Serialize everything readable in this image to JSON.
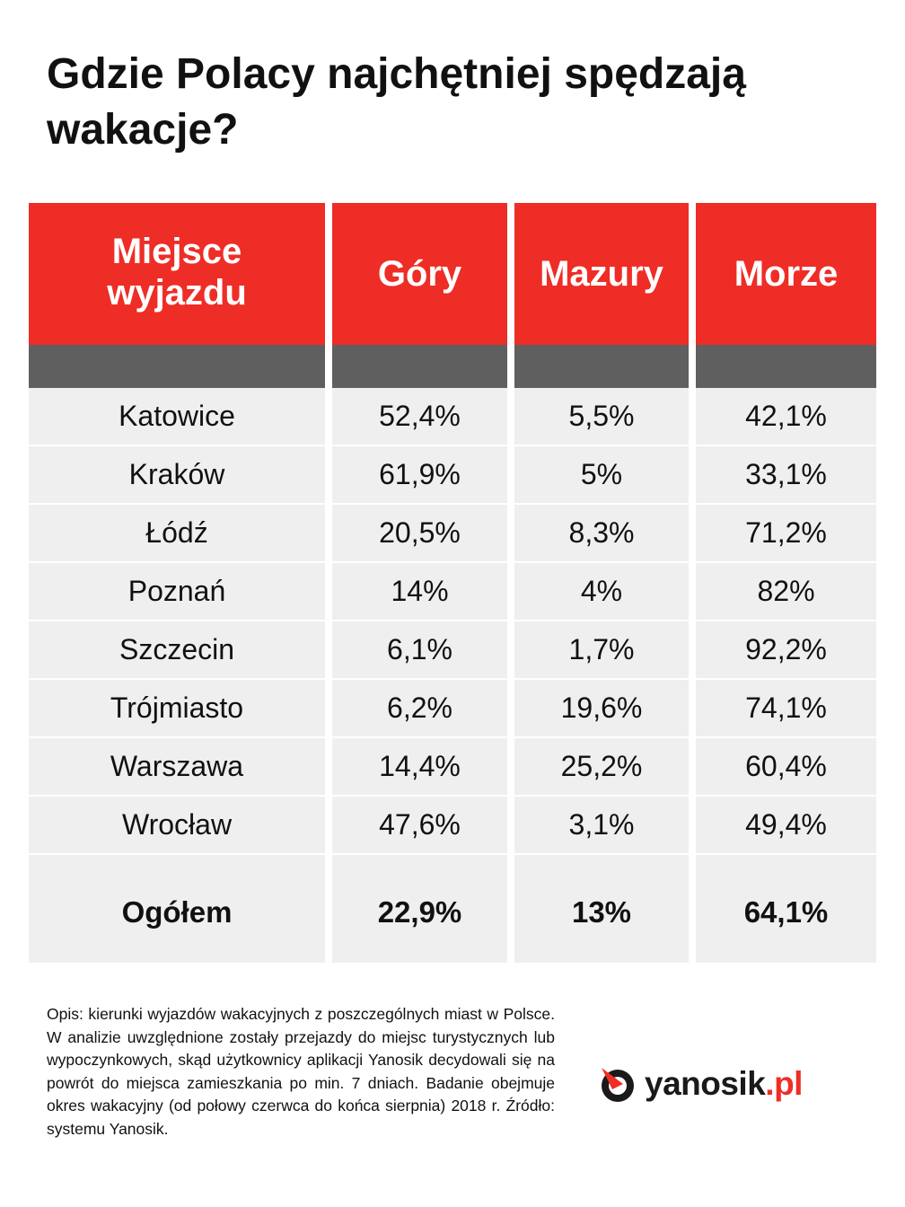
{
  "title": "Gdzie Polacy najchętniej spędzają wakacje?",
  "chart_data": {
    "type": "table",
    "title": "Gdzie Polacy najchętniej spędzają wakacje?",
    "columns": [
      "Miejsce wyjazdu",
      "Góry",
      "Mazury",
      "Morze"
    ],
    "rows": [
      {
        "city": "Katowice",
        "gory": "52,4%",
        "mazury": "5,5%",
        "morze": "42,1%"
      },
      {
        "city": "Kraków",
        "gory": "61,9%",
        "mazury": "5%",
        "morze": "33,1%"
      },
      {
        "city": "Łódź",
        "gory": "20,5%",
        "mazury": "8,3%",
        "morze": "71,2%"
      },
      {
        "city": "Poznań",
        "gory": "14%",
        "mazury": "4%",
        "morze": "82%"
      },
      {
        "city": "Szczecin",
        "gory": "6,1%",
        "mazury": "1,7%",
        "morze": "92,2%"
      },
      {
        "city": "Trójmiasto",
        "gory": "6,2%",
        "mazury": "19,6%",
        "morze": "74,1%"
      },
      {
        "city": "Warszawa",
        "gory": "14,4%",
        "mazury": "25,2%",
        "morze": "60,4%"
      },
      {
        "city": "Wrocław",
        "gory": "47,6%",
        "mazury": "3,1%",
        "morze": "49,4%"
      }
    ],
    "total": {
      "city": "Ogółem",
      "gory": "22,9%",
      "mazury": "13%",
      "morze": "64,1%"
    }
  },
  "header": {
    "col0_line1": "Miejsce",
    "col0_line2": "wyjazdu",
    "col1": "Góry",
    "col2": "Mazury",
    "col3": "Morze"
  },
  "footnote": "Opis: kierunki wyjazdów wakacyjnych z poszczególnych miast w Polsce. W analizie uwzględnione zostały przejazdy do miejsc turystycznych lub wypoczynkowych, skąd użytkownicy aplikacji Yanosik decydowali się na powrót do miejsca zamieszkania po min. 7 dniach. Badanie obejmuje okres wakacyjny (od połowy czerwca do końca sierpnia) 2018 r. Źródło: systemu Yanosik.",
  "logo": {
    "name": "yanosik",
    "tld": ".pl",
    "icon": "yanosik-logo-icon"
  },
  "colors": {
    "accent": "#ee2d26",
    "band": "#5f5f5f",
    "cell": "#efefef"
  }
}
